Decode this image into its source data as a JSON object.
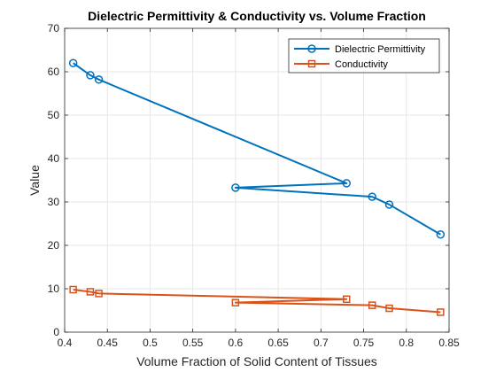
{
  "chart_data": {
    "type": "line",
    "title": "Dielectric Permittivity & Conductivity vs. Volume Fraction",
    "xlabel": "Volume Fraction of Solid Content of Tissues",
    "ylabel": "Value",
    "xlim": [
      0.4,
      0.85
    ],
    "ylim": [
      0,
      70
    ],
    "xticks": [
      "0.4",
      "0.45",
      "0.5",
      "0.55",
      "0.6",
      "0.65",
      "0.7",
      "0.75",
      "0.8",
      "0.85"
    ],
    "yticks": [
      "0",
      "10",
      "20",
      "30",
      "40",
      "50",
      "60",
      "70"
    ],
    "grid": true,
    "legend_position": "top-right",
    "series": [
      {
        "name": "Dielectric Permittivity",
        "color": "#0072BD",
        "marker": "circle",
        "x": [
          0.41,
          0.43,
          0.44,
          0.73,
          0.6,
          0.76,
          0.78,
          0.84
        ],
        "y": [
          62.0,
          59.2,
          58.2,
          34.3,
          33.3,
          31.2,
          29.4,
          22.5
        ]
      },
      {
        "name": "Conductivity",
        "color": "#D95319",
        "marker": "square",
        "x": [
          0.41,
          0.43,
          0.44,
          0.73,
          0.6,
          0.76,
          0.78,
          0.84
        ],
        "y": [
          9.8,
          9.3,
          8.9,
          7.6,
          6.8,
          6.2,
          5.5,
          4.6
        ]
      }
    ]
  }
}
